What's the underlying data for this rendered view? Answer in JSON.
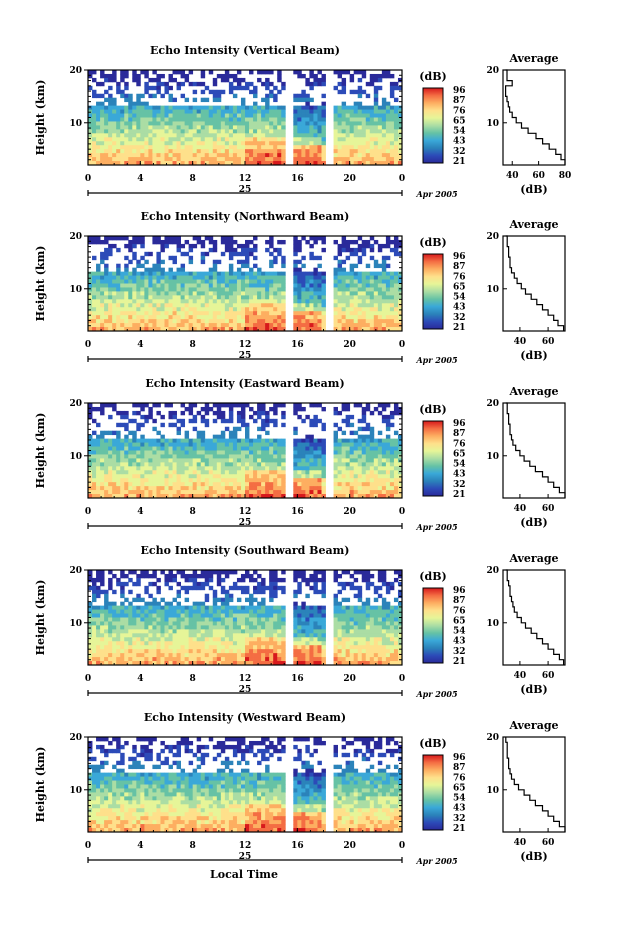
{
  "figure": {
    "xlabel": "Local Time",
    "date_label": "Apr 2005",
    "day_label": "25",
    "colorbar_unit": "(dB)",
    "colorbar_ticks": [
      "96",
      "87",
      "76",
      "65",
      "54",
      "43",
      "32",
      "21"
    ],
    "colorbar_colors": [
      "#d7191c",
      "#f46d43",
      "#fdae61",
      "#fee08b",
      "#e6f598",
      "#abdda4",
      "#66c2a5",
      "#3aa8d8",
      "#2b83ba",
      "#2c4bb8",
      "#2a2a9a"
    ]
  },
  "chart_data": [
    {
      "type": "heatmap",
      "title": "Echo Intensity (Vertical Beam)",
      "xlabel": "Local Time",
      "ylabel": "Height (km)",
      "xticks": [
        "0",
        "4",
        "8",
        "12",
        "16",
        "20",
        "0"
      ],
      "yticks": [
        "20",
        "10"
      ],
      "xlim": [
        0,
        24
      ],
      "ylim": [
        2,
        20
      ],
      "colorbar": {
        "unit": "(dB)",
        "ticks": [
          "96",
          "87",
          "76",
          "65",
          "54",
          "43",
          "32",
          "21"
        ]
      },
      "profile": {
        "title": "Average",
        "xlabel": "(dB)",
        "xticks": [
          "40",
          "60",
          "80"
        ],
        "yticks": [
          "20",
          "10"
        ],
        "xlim": [
          33,
          80
        ],
        "height": [
          2,
          3,
          4,
          5,
          6,
          7,
          8,
          9,
          10,
          11,
          12,
          13,
          14,
          15,
          16,
          17,
          18,
          19,
          20
        ],
        "value": [
          80,
          77,
          73,
          68,
          63,
          58,
          52,
          47,
          43,
          40,
          38,
          37,
          36,
          35,
          35,
          40,
          36,
          36,
          35
        ]
      }
    },
    {
      "type": "heatmap",
      "title": "Echo Intensity (Northward Beam)",
      "xlabel": "Local Time",
      "ylabel": "Height (km)",
      "xticks": [
        "0",
        "4",
        "8",
        "12",
        "16",
        "20",
        "0"
      ],
      "yticks": [
        "20",
        "10"
      ],
      "xlim": [
        0,
        24
      ],
      "ylim": [
        2,
        20
      ],
      "colorbar": {
        "unit": "(dB)",
        "ticks": [
          "96",
          "87",
          "76",
          "65",
          "54",
          "43",
          "32",
          "21"
        ]
      },
      "profile": {
        "title": "Average",
        "xlabel": "(dB)",
        "xticks": [
          "40",
          "60"
        ],
        "yticks": [
          "20",
          "10"
        ],
        "xlim": [
          28,
          72
        ],
        "height": [
          2,
          3,
          4,
          5,
          6,
          7,
          8,
          9,
          10,
          11,
          12,
          13,
          14,
          15,
          16,
          17,
          18,
          19,
          20
        ],
        "value": [
          71,
          67,
          64,
          60,
          56,
          52,
          48,
          44,
          41,
          38,
          36,
          34,
          33,
          33,
          32,
          32,
          31,
          31,
          30
        ]
      }
    },
    {
      "type": "heatmap",
      "title": "Echo Intensity (Eastward Beam)",
      "xlabel": "Local Time",
      "ylabel": "Height (km)",
      "xticks": [
        "0",
        "4",
        "8",
        "12",
        "16",
        "20",
        "0"
      ],
      "yticks": [
        "20",
        "10"
      ],
      "xlim": [
        0,
        24
      ],
      "ylim": [
        2,
        20
      ],
      "colorbar": {
        "unit": "(dB)",
        "ticks": [
          "96",
          "87",
          "76",
          "65",
          "54",
          "43",
          "32",
          "21"
        ]
      },
      "profile": {
        "title": "Average",
        "xlabel": "(dB)",
        "xticks": [
          "40",
          "60"
        ],
        "yticks": [
          "20",
          "10"
        ],
        "xlim": [
          28,
          72
        ],
        "height": [
          2,
          3,
          4,
          5,
          6,
          7,
          8,
          9,
          10,
          11,
          12,
          13,
          14,
          15,
          16,
          17,
          18,
          19,
          20
        ],
        "value": [
          72,
          68,
          64,
          60,
          56,
          51,
          47,
          43,
          40,
          37,
          35,
          34,
          33,
          33,
          32,
          32,
          31,
          31,
          30
        ]
      }
    },
    {
      "type": "heatmap",
      "title": "Echo Intensity (Southward Beam)",
      "xlabel": "Local Time",
      "ylabel": "Height (km)",
      "xticks": [
        "0",
        "4",
        "8",
        "12",
        "16",
        "20",
        "0"
      ],
      "yticks": [
        "20",
        "10"
      ],
      "xlim": [
        0,
        24
      ],
      "ylim": [
        2,
        20
      ],
      "colorbar": {
        "unit": "(dB)",
        "ticks": [
          "96",
          "87",
          "76",
          "65",
          "54",
          "43",
          "32",
          "21"
        ]
      },
      "profile": {
        "title": "Average",
        "xlabel": "(dB)",
        "xticks": [
          "40",
          "60"
        ],
        "yticks": [
          "20",
          "10"
        ],
        "xlim": [
          28,
          72
        ],
        "height": [
          2,
          3,
          4,
          5,
          6,
          7,
          8,
          9,
          10,
          11,
          12,
          13,
          14,
          15,
          16,
          17,
          18,
          19,
          20
        ],
        "value": [
          71,
          68,
          64,
          60,
          56,
          52,
          48,
          44,
          41,
          38,
          36,
          35,
          34,
          33,
          33,
          32,
          31,
          31,
          30
        ]
      }
    },
    {
      "type": "heatmap",
      "title": "Echo Intensity (Westward Beam)",
      "xlabel": "Local Time",
      "ylabel": "Height (km)",
      "xticks": [
        "0",
        "4",
        "8",
        "12",
        "16",
        "20",
        "0"
      ],
      "yticks": [
        "20",
        "10"
      ],
      "xlim": [
        0,
        24
      ],
      "ylim": [
        2,
        20
      ],
      "colorbar": {
        "unit": "(dB)",
        "ticks": [
          "96",
          "87",
          "76",
          "65",
          "54",
          "43",
          "32",
          "21"
        ]
      },
      "profile": {
        "title": "Average",
        "xlabel": "(dB)",
        "xticks": [
          "40",
          "60"
        ],
        "yticks": [
          "20",
          "10"
        ],
        "xlim": [
          28,
          72
        ],
        "height": [
          2,
          3,
          4,
          5,
          6,
          7,
          8,
          9,
          10,
          11,
          12,
          13,
          14,
          15,
          16,
          17,
          18,
          19,
          20
        ],
        "value": [
          72,
          68,
          64,
          60,
          56,
          51,
          47,
          43,
          39,
          36,
          34,
          33,
          32,
          32,
          31,
          31,
          31,
          30,
          30
        ]
      }
    }
  ]
}
